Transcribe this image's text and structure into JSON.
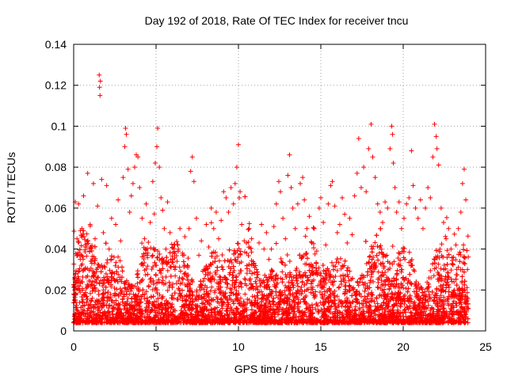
{
  "chart_data": {
    "type": "scatter",
    "title": "Day 192 of 2018, Rate Of TEC Index for receiver tncu",
    "xlabel": "GPS time / hours",
    "ylabel": "ROTI / TECUs",
    "xlim": [
      0,
      25
    ],
    "ylim": [
      0,
      0.14
    ],
    "xticks": [
      0,
      5,
      10,
      15,
      20,
      25
    ],
    "xtick_labels": [
      "0",
      "5",
      "10",
      "15",
      "20",
      "25"
    ],
    "yticks": [
      0,
      0.02,
      0.04,
      0.06,
      0.08,
      0.1,
      0.12,
      0.14
    ],
    "ytick_labels": [
      "0",
      "0.02",
      "0.04",
      "0.06",
      "0.08",
      "0.1",
      "0.12",
      "0.14"
    ],
    "grid": true,
    "marker": "+",
    "color": "#ff0000",
    "series": [
      {
        "values": [
          [
            0.05,
            0.015
          ],
          [
            0.1,
            0.063
          ],
          [
            0.12,
            0.028
          ],
          [
            0.2,
            0.045
          ],
          [
            0.3,
            0.062
          ],
          [
            0.4,
            0.035
          ],
          [
            0.5,
            0.05
          ],
          [
            0.6,
            0.066
          ],
          [
            0.7,
            0.041
          ],
          [
            0.85,
            0.077
          ],
          [
            0.9,
            0.022
          ],
          [
            1.0,
            0.052
          ],
          [
            1.1,
            0.034
          ],
          [
            1.2,
            0.072
          ],
          [
            1.3,
            0.045
          ],
          [
            1.45,
            0.061
          ],
          [
            1.55,
            0.125
          ],
          [
            1.57,
            0.119
          ],
          [
            1.6,
            0.115
          ],
          [
            1.62,
            0.122
          ],
          [
            1.7,
            0.074
          ],
          [
            1.8,
            0.048
          ],
          [
            1.9,
            0.031
          ],
          [
            2.0,
            0.071
          ],
          [
            2.15,
            0.04
          ],
          [
            2.3,
            0.055
          ],
          [
            2.45,
            0.036
          ],
          [
            2.55,
            0.052
          ],
          [
            2.7,
            0.064
          ],
          [
            2.85,
            0.044
          ],
          [
            3.0,
            0.075
          ],
          [
            3.1,
            0.09
          ],
          [
            3.15,
            0.099
          ],
          [
            3.2,
            0.096
          ],
          [
            3.3,
            0.079
          ],
          [
            3.4,
            0.058
          ],
          [
            3.5,
            0.066
          ],
          [
            3.6,
            0.072
          ],
          [
            3.7,
            0.08
          ],
          [
            3.8,
            0.086
          ],
          [
            3.9,
            0.085
          ],
          [
            4.0,
            0.07
          ],
          [
            4.15,
            0.055
          ],
          [
            4.3,
            0.045
          ],
          [
            4.4,
            0.062
          ],
          [
            4.5,
            0.038
          ],
          [
            4.65,
            0.053
          ],
          [
            4.8,
            0.073
          ],
          [
            4.95,
            0.082
          ],
          [
            5.05,
            0.09
          ],
          [
            5.1,
            0.099
          ],
          [
            5.2,
            0.08
          ],
          [
            5.3,
            0.065
          ],
          [
            5.4,
            0.059
          ],
          [
            5.5,
            0.05
          ],
          [
            5.6,
            0.04
          ],
          [
            5.7,
            0.063
          ],
          [
            5.85,
            0.048
          ],
          [
            6.0,
            0.035
          ],
          [
            6.15,
            0.03
          ],
          [
            6.3,
            0.042
          ],
          [
            6.45,
            0.05
          ],
          [
            6.6,
            0.038
          ],
          [
            6.75,
            0.046
          ],
          [
            6.9,
            0.032
          ],
          [
            7.0,
            0.05
          ],
          [
            7.1,
            0.078
          ],
          [
            7.2,
            0.085
          ],
          [
            7.3,
            0.073
          ],
          [
            7.45,
            0.055
          ],
          [
            7.6,
            0.037
          ],
          [
            7.75,
            0.044
          ],
          [
            7.9,
            0.03
          ],
          [
            8.05,
            0.052
          ],
          [
            8.2,
            0.041
          ],
          [
            8.35,
            0.06
          ],
          [
            8.5,
            0.05
          ],
          [
            8.65,
            0.058
          ],
          [
            8.8,
            0.045
          ],
          [
            8.95,
            0.054
          ],
          [
            9.1,
            0.068
          ],
          [
            9.25,
            0.065
          ],
          [
            9.4,
            0.058
          ],
          [
            9.55,
            0.07
          ],
          [
            9.7,
            0.062
          ],
          [
            9.8,
            0.072
          ],
          [
            9.9,
            0.08
          ],
          [
            10.0,
            0.091
          ],
          [
            10.1,
            0.068
          ],
          [
            10.2,
            0.052
          ],
          [
            10.35,
            0.044
          ],
          [
            10.5,
            0.038
          ],
          [
            10.65,
            0.05
          ],
          [
            10.8,
            0.045
          ],
          [
            10.95,
            0.033
          ],
          [
            11.1,
            0.03
          ],
          [
            11.25,
            0.043
          ],
          [
            11.4,
            0.052
          ],
          [
            11.55,
            0.04
          ],
          [
            11.7,
            0.048
          ],
          [
            11.85,
            0.035
          ],
          [
            12.0,
            0.04
          ],
          [
            12.15,
            0.051
          ],
          [
            12.3,
            0.062
          ],
          [
            12.45,
            0.073
          ],
          [
            12.55,
            0.068
          ],
          [
            12.7,
            0.055
          ],
          [
            12.85,
            0.045
          ],
          [
            13.0,
            0.076
          ],
          [
            13.1,
            0.086
          ],
          [
            13.2,
            0.07
          ],
          [
            13.3,
            0.06
          ],
          [
            13.45,
            0.05
          ],
          [
            13.6,
            0.062
          ],
          [
            13.75,
            0.072
          ],
          [
            13.9,
            0.075
          ],
          [
            14.0,
            0.064
          ],
          [
            14.15,
            0.05
          ],
          [
            14.3,
            0.056
          ],
          [
            14.45,
            0.043
          ],
          [
            14.6,
            0.05
          ],
          [
            14.75,
            0.039
          ],
          [
            14.9,
            0.06
          ],
          [
            15.0,
            0.065
          ],
          [
            15.15,
            0.053
          ],
          [
            15.3,
            0.042
          ],
          [
            15.45,
            0.062
          ],
          [
            15.6,
            0.071
          ],
          [
            15.7,
            0.073
          ],
          [
            15.85,
            0.061
          ],
          [
            16.0,
            0.048
          ],
          [
            16.15,
            0.052
          ],
          [
            16.3,
            0.065
          ],
          [
            16.45,
            0.057
          ],
          [
            16.6,
            0.043
          ],
          [
            16.75,
            0.055
          ],
          [
            16.9,
            0.047
          ],
          [
            17.05,
            0.066
          ],
          [
            17.2,
            0.077
          ],
          [
            17.3,
            0.094
          ],
          [
            17.45,
            0.07
          ],
          [
            17.6,
            0.08
          ],
          [
            17.75,
            0.068
          ],
          [
            17.9,
            0.089
          ],
          [
            18.05,
            0.101
          ],
          [
            18.15,
            0.085
          ],
          [
            18.3,
            0.075
          ],
          [
            18.45,
            0.062
          ],
          [
            18.6,
            0.058
          ],
          [
            18.75,
            0.053
          ],
          [
            18.9,
            0.063
          ],
          [
            19.05,
            0.06
          ],
          [
            19.2,
            0.089
          ],
          [
            19.3,
            0.1
          ],
          [
            19.35,
            0.096
          ],
          [
            19.4,
            0.082
          ],
          [
            19.5,
            0.07
          ],
          [
            19.6,
            0.058
          ],
          [
            19.75,
            0.063
          ],
          [
            19.9,
            0.05
          ],
          [
            20.05,
            0.055
          ],
          [
            20.2,
            0.062
          ],
          [
            20.35,
            0.065
          ],
          [
            20.5,
            0.088
          ],
          [
            20.6,
            0.071
          ],
          [
            20.75,
            0.06
          ],
          [
            20.9,
            0.055
          ],
          [
            21.05,
            0.064
          ],
          [
            21.2,
            0.05
          ],
          [
            21.35,
            0.06
          ],
          [
            21.5,
            0.07
          ],
          [
            21.65,
            0.065
          ],
          [
            21.8,
            0.085
          ],
          [
            21.9,
            0.101
          ],
          [
            22.0,
            0.095
          ],
          [
            22.05,
            0.089
          ],
          [
            22.15,
            0.081
          ],
          [
            22.3,
            0.06
          ],
          [
            22.45,
            0.053
          ],
          [
            22.6,
            0.045
          ],
          [
            22.75,
            0.05
          ],
          [
            22.9,
            0.04
          ],
          [
            23.05,
            0.036
          ],
          [
            23.2,
            0.042
          ],
          [
            23.35,
            0.05
          ],
          [
            23.5,
            0.058
          ],
          [
            23.6,
            0.072
          ],
          [
            23.7,
            0.079
          ],
          [
            23.8,
            0.064
          ],
          [
            23.9,
            0.03
          ]
        ]
      }
    ]
  }
}
